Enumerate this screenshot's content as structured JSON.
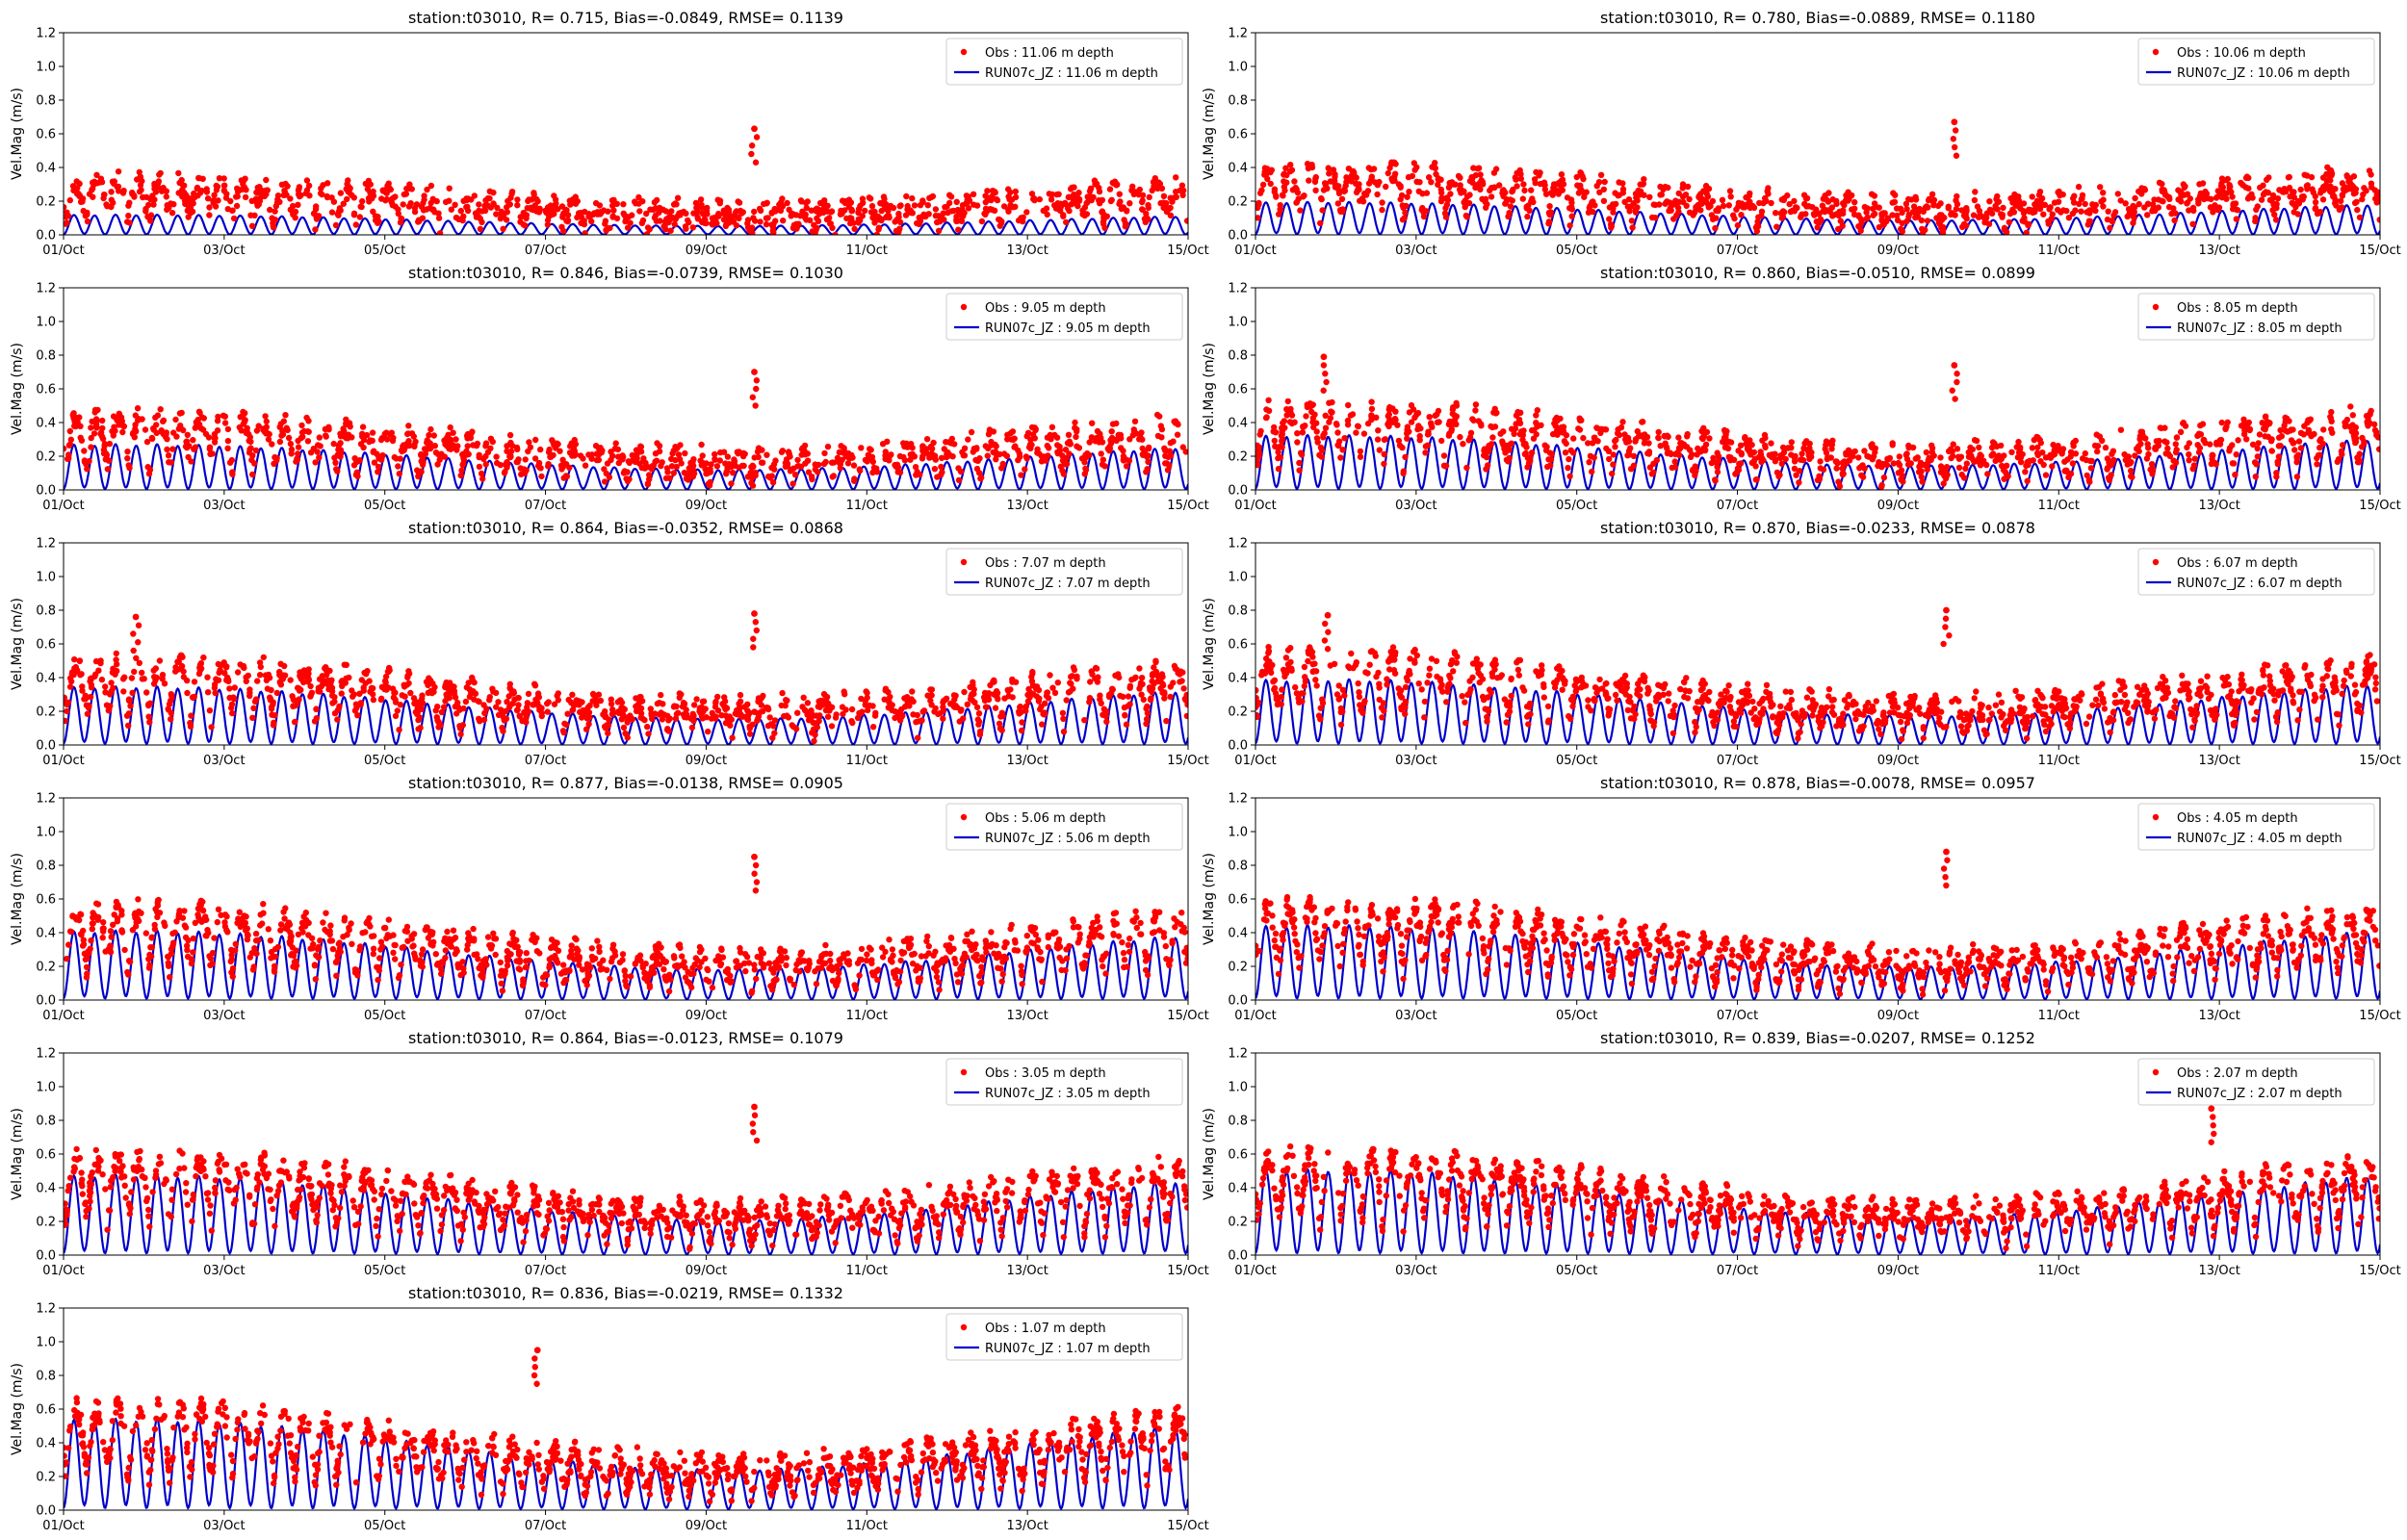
{
  "chart_data": [
    {
      "type": "scatter+line",
      "title": "station:t03010, R= 0.715, Bias=-0.0849, RMSE= 0.1139",
      "depth_m": 11.06,
      "obs_label": "Obs : 11.06 m depth",
      "model_label": "RUN07c_JZ : 11.06 m depth",
      "obs_level": 0.22,
      "model_level": 0.11,
      "spikes": [
        {
          "day": 8.6,
          "value": 0.63
        }
      ]
    },
    {
      "type": "scatter+line",
      "title": "station:t03010, R= 0.780, Bias=-0.0889, RMSE= 0.1180",
      "depth_m": 10.06,
      "obs_label": "Obs : 10.06 m depth",
      "model_label": "RUN07c_JZ : 10.06 m depth",
      "obs_level": 0.27,
      "model_level": 0.18,
      "spikes": [
        {
          "day": 8.7,
          "value": 0.67
        }
      ]
    },
    {
      "type": "scatter+line",
      "title": "station:t03010, R= 0.846, Bias=-0.0739, RMSE= 0.1030",
      "depth_m": 9.05,
      "obs_label": "Obs : 9.05 m depth",
      "model_label": "RUN07c_JZ : 9.05 m depth",
      "obs_level": 0.3,
      "model_level": 0.25,
      "spikes": [
        {
          "day": 8.6,
          "value": 0.7
        }
      ]
    },
    {
      "type": "scatter+line",
      "title": "station:t03010, R= 0.860, Bias=-0.0510, RMSE= 0.0899",
      "depth_m": 8.05,
      "obs_label": "Obs : 8.05 m depth",
      "model_label": "RUN07c_JZ : 8.05 m depth",
      "obs_level": 0.34,
      "model_level": 0.3,
      "spikes": [
        {
          "day": 0.85,
          "value": 0.79
        },
        {
          "day": 8.7,
          "value": 0.74
        }
      ]
    },
    {
      "type": "scatter+line",
      "title": "station:t03010, R= 0.864, Bias=-0.0352, RMSE= 0.0868",
      "depth_m": 7.07,
      "obs_label": "Obs : 7.07 m depth",
      "model_label": "RUN07c_JZ : 7.07 m depth",
      "obs_level": 0.35,
      "model_level": 0.32,
      "spikes": [
        {
          "day": 0.9,
          "value": 0.76
        },
        {
          "day": 8.6,
          "value": 0.78
        }
      ]
    },
    {
      "type": "scatter+line",
      "title": "station:t03010, R= 0.870, Bias=-0.0233, RMSE= 0.0878",
      "depth_m": 6.07,
      "obs_label": "Obs : 6.07 m depth",
      "model_label": "RUN07c_JZ : 6.07 m depth",
      "obs_level": 0.37,
      "model_level": 0.36,
      "spikes": [
        {
          "day": 0.9,
          "value": 0.77
        },
        {
          "day": 8.6,
          "value": 0.8
        }
      ]
    },
    {
      "type": "scatter+line",
      "title": "station:t03010, R= 0.877, Bias=-0.0138, RMSE= 0.0905",
      "depth_m": 5.06,
      "obs_label": "Obs : 5.06 m depth",
      "model_label": "RUN07c_JZ : 5.06 m depth",
      "obs_level": 0.38,
      "model_level": 0.38,
      "spikes": [
        {
          "day": 8.6,
          "value": 0.85
        }
      ]
    },
    {
      "type": "scatter+line",
      "title": "station:t03010, R= 0.878, Bias=-0.0078, RMSE= 0.0957",
      "depth_m": 4.05,
      "obs_label": "Obs : 4.05 m depth",
      "model_label": "RUN07c_JZ : 4.05 m depth",
      "obs_level": 0.4,
      "model_level": 0.41,
      "spikes": [
        {
          "day": 8.6,
          "value": 0.88
        }
      ]
    },
    {
      "type": "scatter+line",
      "title": "station:t03010, R= 0.864, Bias=-0.0123, RMSE= 0.1079",
      "depth_m": 3.05,
      "obs_label": "Obs : 3.05 m depth",
      "model_label": "RUN07c_JZ : 3.05 m depth",
      "obs_level": 0.41,
      "model_level": 0.44,
      "spikes": [
        {
          "day": 8.6,
          "value": 0.88
        }
      ]
    },
    {
      "type": "scatter+line",
      "title": "station:t03010, R= 0.839, Bias=-0.0207, RMSE= 0.1252",
      "depth_m": 2.07,
      "obs_label": "Obs : 2.07 m depth",
      "model_label": "RUN07c_JZ : 2.07 m depth",
      "obs_level": 0.42,
      "model_level": 0.47,
      "spikes": [
        {
          "day": 11.9,
          "value": 0.87
        }
      ]
    },
    {
      "type": "scatter+line",
      "title": "station:t03010, R= 0.836, Bias=-0.0219, RMSE= 0.1332",
      "depth_m": 1.07,
      "obs_label": "Obs : 1.07 m depth",
      "model_label": "RUN07c_JZ : 1.07 m depth",
      "obs_level": 0.43,
      "model_level": 0.5,
      "spikes": [
        {
          "day": 5.9,
          "value": 0.95
        }
      ]
    }
  ],
  "axes": {
    "ylabel": "Vel.Mag (m/s)",
    "ylim": [
      0.0,
      1.2
    ],
    "yticks": [
      "0.0",
      "0.2",
      "0.4",
      "0.6",
      "0.8",
      "1.0",
      "1.2"
    ],
    "xlim_days": [
      0,
      14
    ],
    "xticks": [
      "01/Oct",
      "03/Oct",
      "05/Oct",
      "07/Oct",
      "09/Oct",
      "11/Oct",
      "13/Oct",
      "15/Oct"
    ]
  },
  "colors": {
    "obs": "#ff0000",
    "model": "#0000cc",
    "axis": "#000000",
    "legend_border": "#cccccc"
  }
}
